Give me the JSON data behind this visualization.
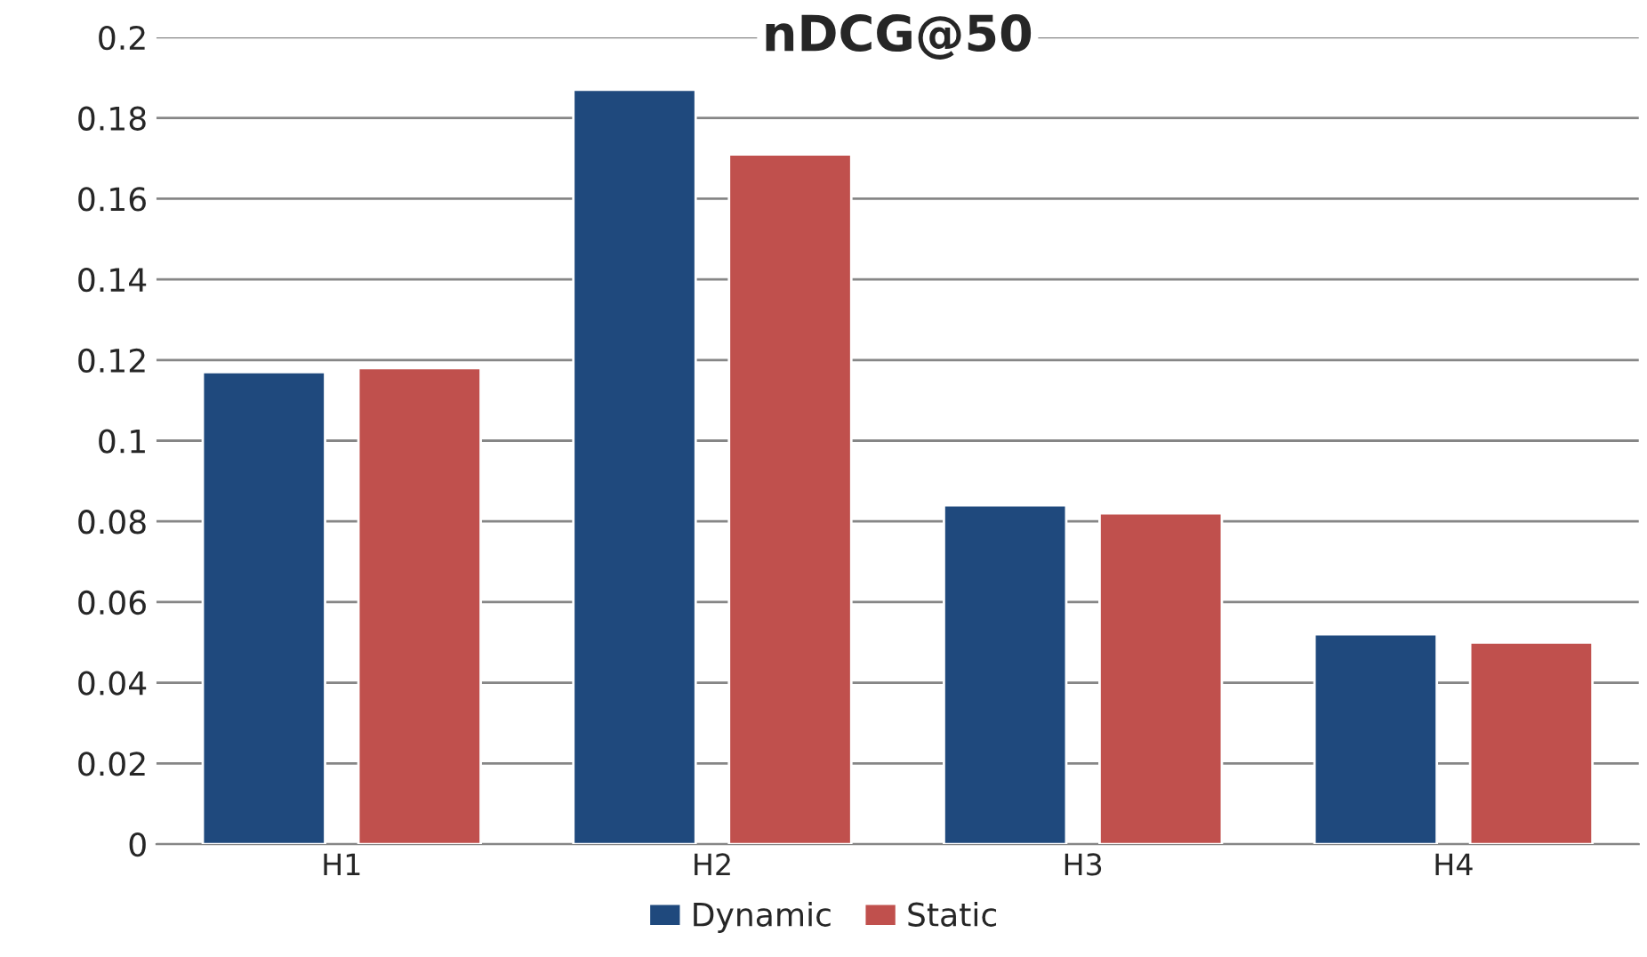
{
  "chart_data": {
    "type": "bar",
    "title": "nDCG@50",
    "categories": [
      "H1",
      "H2",
      "H3",
      "H4"
    ],
    "series": [
      {
        "name": "Dynamic",
        "color": "#1f497d",
        "values": [
          0.117,
          0.187,
          0.084,
          0.052
        ]
      },
      {
        "name": "Static",
        "color": "#c0504d",
        "values": [
          0.118,
          0.171,
          0.082,
          0.05
        ]
      }
    ],
    "ylim": [
      0,
      0.2
    ],
    "yticks": [
      0,
      0.02,
      0.04,
      0.06,
      0.08,
      0.1,
      0.12,
      0.14,
      0.16,
      0.18,
      0.2
    ],
    "grid": "y",
    "legend": "bottom"
  }
}
